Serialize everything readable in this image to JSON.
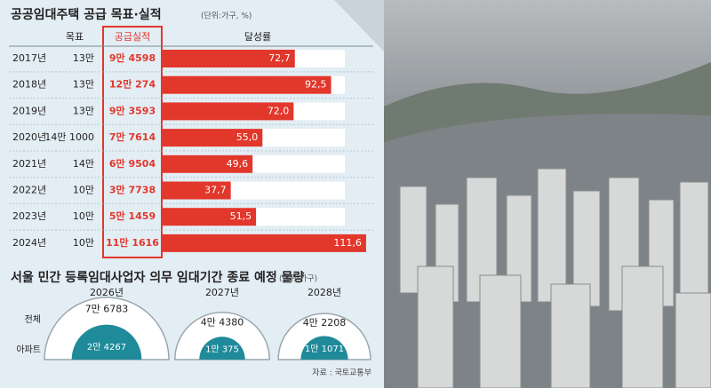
{
  "chart_data": [
    {
      "type": "bar",
      "title": "공공임대주택 공급 목표·실적",
      "unit": "(단위:가구, %)",
      "column_headers": [
        "목표",
        "공급실적",
        "달성률"
      ],
      "categories": [
        "2017년",
        "2018년",
        "2019년",
        "2020년",
        "2021년",
        "2022년",
        "2023년",
        "2024년"
      ],
      "targets": [
        "13만",
        "13만",
        "13만",
        "14만 1000",
        "14만",
        "10만",
        "10만",
        "10만"
      ],
      "supply": [
        "9만 4598",
        "12만 274",
        "9만 3593",
        "7만 7614",
        "6만 9504",
        "3만 7738",
        "5만 1459",
        "11만 1616"
      ],
      "values": [
        72.7,
        92.5,
        72.0,
        55.0,
        49.6,
        37.7,
        51.5,
        111.6
      ],
      "value_labels": [
        "72,7",
        "92,5",
        "72,0",
        "55,0",
        "49,6",
        "37,7",
        "51,5",
        "111,6"
      ],
      "color": "#e2372b",
      "xlim": [
        0,
        100
      ]
    },
    {
      "type": "semicircle",
      "title": "서울 민간 등록임대사업자 의무 임대기간 종료 예정 물량",
      "unit": "(단위:가구)",
      "categories": [
        "2026년",
        "2027년",
        "2028년"
      ],
      "series": [
        {
          "name": "전체",
          "color": "#ffffff",
          "values": [
            76783,
            44380,
            42208
          ],
          "value_labels": [
            "7만 6783",
            "4만 4380",
            "4만 2208"
          ]
        },
        {
          "name": "아파트",
          "color": "#1f8a9a",
          "values": [
            24267,
            10375,
            11071
          ],
          "value_labels": [
            "2만 4267",
            "1만 375",
            "1만 1071"
          ]
        }
      ]
    }
  ],
  "source": "자료 : 국토교통부"
}
